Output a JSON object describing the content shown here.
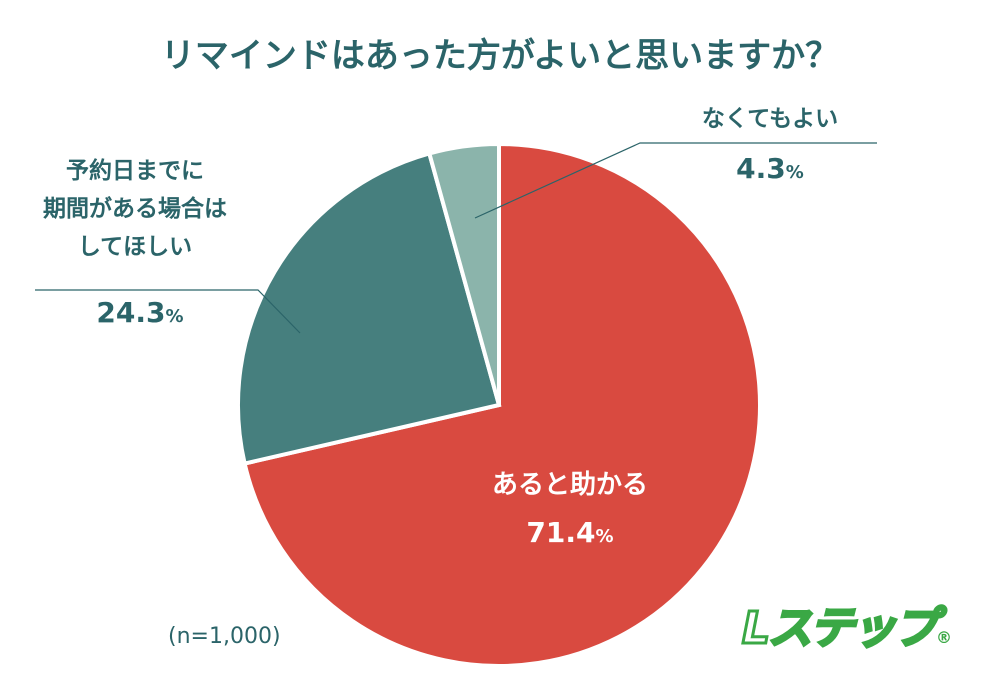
{
  "title": "リマインドはあった方がよいと思いますか？",
  "sample_note": "(n=1,000)",
  "logo_text": "Lステップ®",
  "chart_data": {
    "type": "pie",
    "title": "リマインドはあった方がよいと思いますか？",
    "start": "top, clockwise",
    "slices": [
      {
        "label": "あると助かる",
        "value": 71.4,
        "display": "71.4",
        "color": "#d94a40"
      },
      {
        "label": "予約日までに期間がある場合はしてほしい",
        "label_lines": [
          "予約日までに",
          "期間がある場合は",
          "してほしい"
        ],
        "value": 24.3,
        "display": "24.3",
        "color": "#467f7e"
      },
      {
        "label": "なくてもよい",
        "value": 4.3,
        "display": "4.3",
        "color": "#8bb4ab"
      }
    ],
    "unit": "%"
  }
}
